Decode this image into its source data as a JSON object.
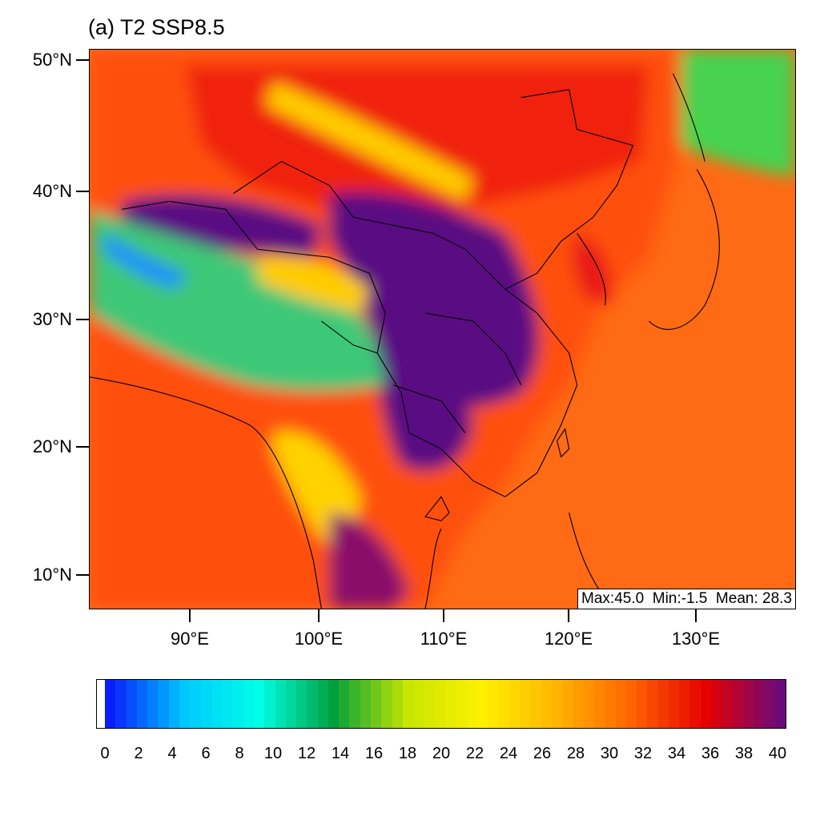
{
  "title": "(a) T2 SSP8.5",
  "axes": {
    "y_labels": [
      "50°N",
      "40°N",
      "30°N",
      "20°N",
      "10°N"
    ],
    "x_labels": [
      "90°E",
      "100°E",
      "110°E",
      "120°E",
      "130°E"
    ]
  },
  "stats": {
    "text": "Max:45.0  Min:-1.5  Mean: 28.3"
  },
  "colorbar": {
    "labels": [
      "0",
      "2",
      "4",
      "6",
      "8",
      "10",
      "12",
      "14",
      "16",
      "18",
      "20",
      "22",
      "24",
      "26",
      "28",
      "30",
      "32",
      "34",
      "36",
      "38",
      "40"
    ],
    "min": 0,
    "max": 40,
    "colors": [
      "#0a1efc",
      "#00c8ff",
      "#00ffe6",
      "#00a03c",
      "#c8e600",
      "#fff000",
      "#ffb400",
      "#ff6400",
      "#e60000",
      "#6b0a7a"
    ]
  },
  "map": {
    "region_colors": {
      "ocean": "#ff6a14",
      "tibet_plateau": "#3cc878",
      "north_china_hot": "#5a0f82",
      "desert_red": "#e81414",
      "yellow_band": "#ffd200",
      "japan_north_green": "#46d250"
    }
  }
}
